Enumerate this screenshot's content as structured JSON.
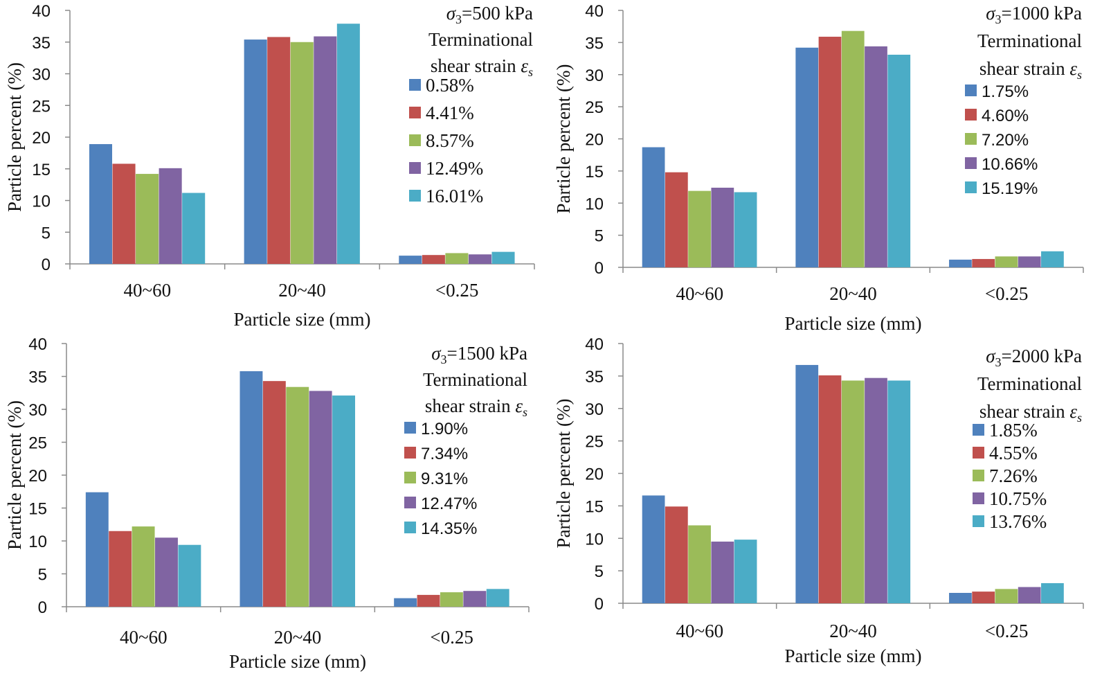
{
  "colors": {
    "series": [
      "#4f81bd",
      "#c0504d",
      "#9bbb59",
      "#8064a2",
      "#4bacc6"
    ],
    "axis": "#8a8a8a",
    "text": "#111111"
  },
  "chart_data": [
    {
      "type": "bar",
      "title_lines": [
        "σ3=500 kPa",
        "Terminational",
        "shear strain εs"
      ],
      "xlabel": "Particle size (mm)",
      "ylabel": "Particle percent (%)",
      "ylim": [
        0,
        40
      ],
      "yticks": [
        "0",
        "5",
        "10",
        "15",
        "20",
        "25",
        "30",
        "35",
        "40"
      ],
      "categories": [
        "40~60",
        "20~40",
        "<0.25"
      ],
      "legend_position": "top-right",
      "series": [
        {
          "name": "0.58%",
          "values": [
            18.9,
            35.4,
            1.3
          ]
        },
        {
          "name": "4.41%",
          "values": [
            15.8,
            35.8,
            1.4
          ]
        },
        {
          "name": "8.57%",
          "values": [
            14.2,
            35.0,
            1.7
          ]
        },
        {
          "name": "12.49%",
          "values": [
            15.1,
            35.9,
            1.5
          ]
        },
        {
          "name": "16.01%",
          "values": [
            11.2,
            37.9,
            1.9
          ]
        }
      ]
    },
    {
      "type": "bar",
      "title_lines": [
        "σ3=1000 kPa",
        "Terminational",
        "shear strain εs"
      ],
      "xlabel": "Particle size (mm)",
      "ylabel": "Particle percent (%)",
      "ylim": [
        0,
        40
      ],
      "yticks": [
        "0",
        "5",
        "10",
        "15",
        "20",
        "25",
        "30",
        "35",
        "40"
      ],
      "categories": [
        "40~60",
        "20~40",
        "<0.25"
      ],
      "legend_position": "top-right",
      "series": [
        {
          "name": "1.75%",
          "values": [
            18.7,
            34.2,
            1.2
          ]
        },
        {
          "name": "4.60%",
          "values": [
            14.8,
            35.9,
            1.3
          ]
        },
        {
          "name": "7.20%",
          "values": [
            11.9,
            36.8,
            1.7
          ]
        },
        {
          "name": "10.66%",
          "values": [
            12.4,
            34.4,
            1.7
          ]
        },
        {
          "name": "15.19%",
          "values": [
            11.7,
            33.1,
            2.5
          ]
        }
      ]
    },
    {
      "type": "bar",
      "title_lines": [
        "σ3=1500 kPa",
        "Terminational",
        "shear strain εs"
      ],
      "xlabel": "Particle size (mm)",
      "ylabel": "Particle percent (%)",
      "ylim": [
        0,
        40
      ],
      "yticks": [
        "0",
        "5",
        "10",
        "15",
        "20",
        "25",
        "30",
        "35",
        "40"
      ],
      "categories": [
        "40~60",
        "20~40",
        "<0.25"
      ],
      "legend_position": "top-right",
      "series": [
        {
          "name": "1.90%",
          "values": [
            17.4,
            35.8,
            1.3
          ]
        },
        {
          "name": "7.34%",
          "values": [
            11.5,
            34.3,
            1.8
          ]
        },
        {
          "name": "9.31%",
          "values": [
            12.2,
            33.4,
            2.2
          ]
        },
        {
          "name": "12.47%",
          "values": [
            10.5,
            32.8,
            2.4
          ]
        },
        {
          "name": "14.35%",
          "values": [
            9.4,
            32.1,
            2.7
          ]
        }
      ]
    },
    {
      "type": "bar",
      "title_lines": [
        "σ3=2000 kPa",
        "Terminational",
        "shear strain εs"
      ],
      "xlabel": "Particle size (mm)",
      "ylabel": "Particle percent (%)",
      "ylim": [
        0,
        40
      ],
      "yticks": [
        "0",
        "5",
        "10",
        "15",
        "20",
        "25",
        "30",
        "35",
        "40"
      ],
      "categories": [
        "40~60",
        "20~40",
        "<0.25"
      ],
      "legend_position": "top-right",
      "series": [
        {
          "name": "1.85%",
          "values": [
            16.6,
            36.7,
            1.6
          ]
        },
        {
          "name": "4.55%",
          "values": [
            14.9,
            35.1,
            1.8
          ]
        },
        {
          "name": "7.26%",
          "values": [
            12.0,
            34.3,
            2.2
          ]
        },
        {
          "name": "10.75%",
          "values": [
            9.5,
            34.7,
            2.5
          ]
        },
        {
          "name": "13.76%",
          "values": [
            9.8,
            34.3,
            3.1
          ]
        }
      ]
    }
  ]
}
